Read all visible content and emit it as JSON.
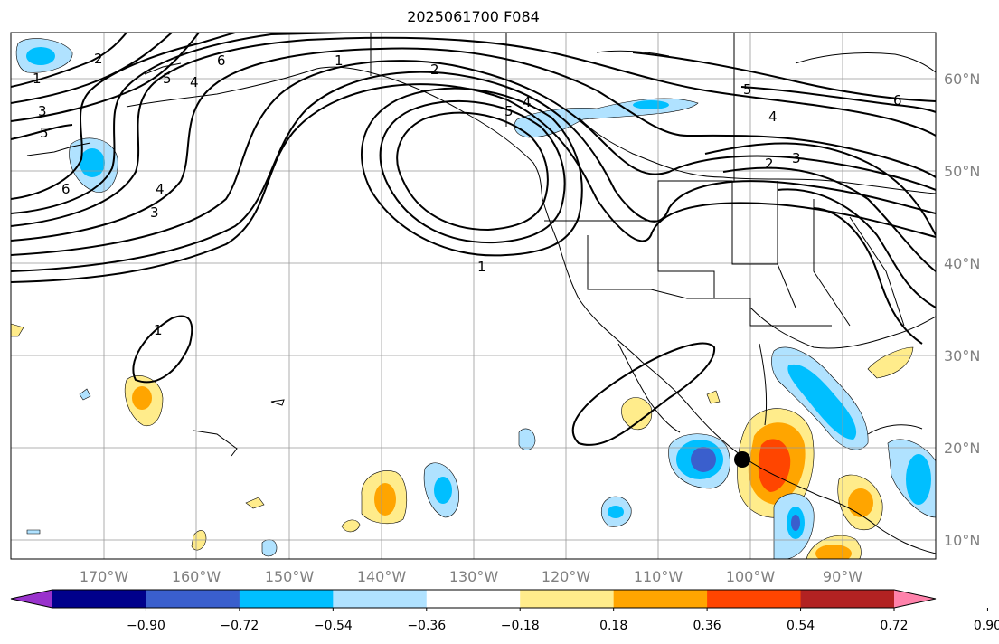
{
  "title": "2025061700 F084",
  "map": {
    "lon_range": [
      -180,
      -80
    ],
    "lat_range": [
      8,
      65
    ],
    "lon_ticks": [
      "170°W",
      "160°W",
      "150°W",
      "140°W",
      "130°W",
      "120°W",
      "110°W",
      "100°W",
      "90°W"
    ],
    "lat_ticks": [
      "60°N",
      "50°N",
      "40°N",
      "30°N",
      "20°N",
      "10°N"
    ],
    "gridlines": true,
    "contour_color": "#000000",
    "contour_labels": [
      "1",
      "2",
      "3",
      "4",
      "5",
      "6"
    ],
    "marker": {
      "label": "point",
      "lon": -100.9,
      "lat": 18.8
    }
  },
  "colorbar": {
    "ticks": [
      "−0.90",
      "−0.72",
      "−0.54",
      "−0.36",
      "−0.18",
      "0.18",
      "0.36",
      "0.54",
      "0.72",
      "0.90"
    ],
    "colors": [
      "#9932cc",
      "#00008b",
      "#3a5fcd",
      "#00bfff",
      "#b0e2ff",
      "#ffffff",
      "#ffec8b",
      "#ffa500",
      "#ff4500",
      "#b22222",
      "#ff82ab"
    ],
    "extend": "both"
  }
}
